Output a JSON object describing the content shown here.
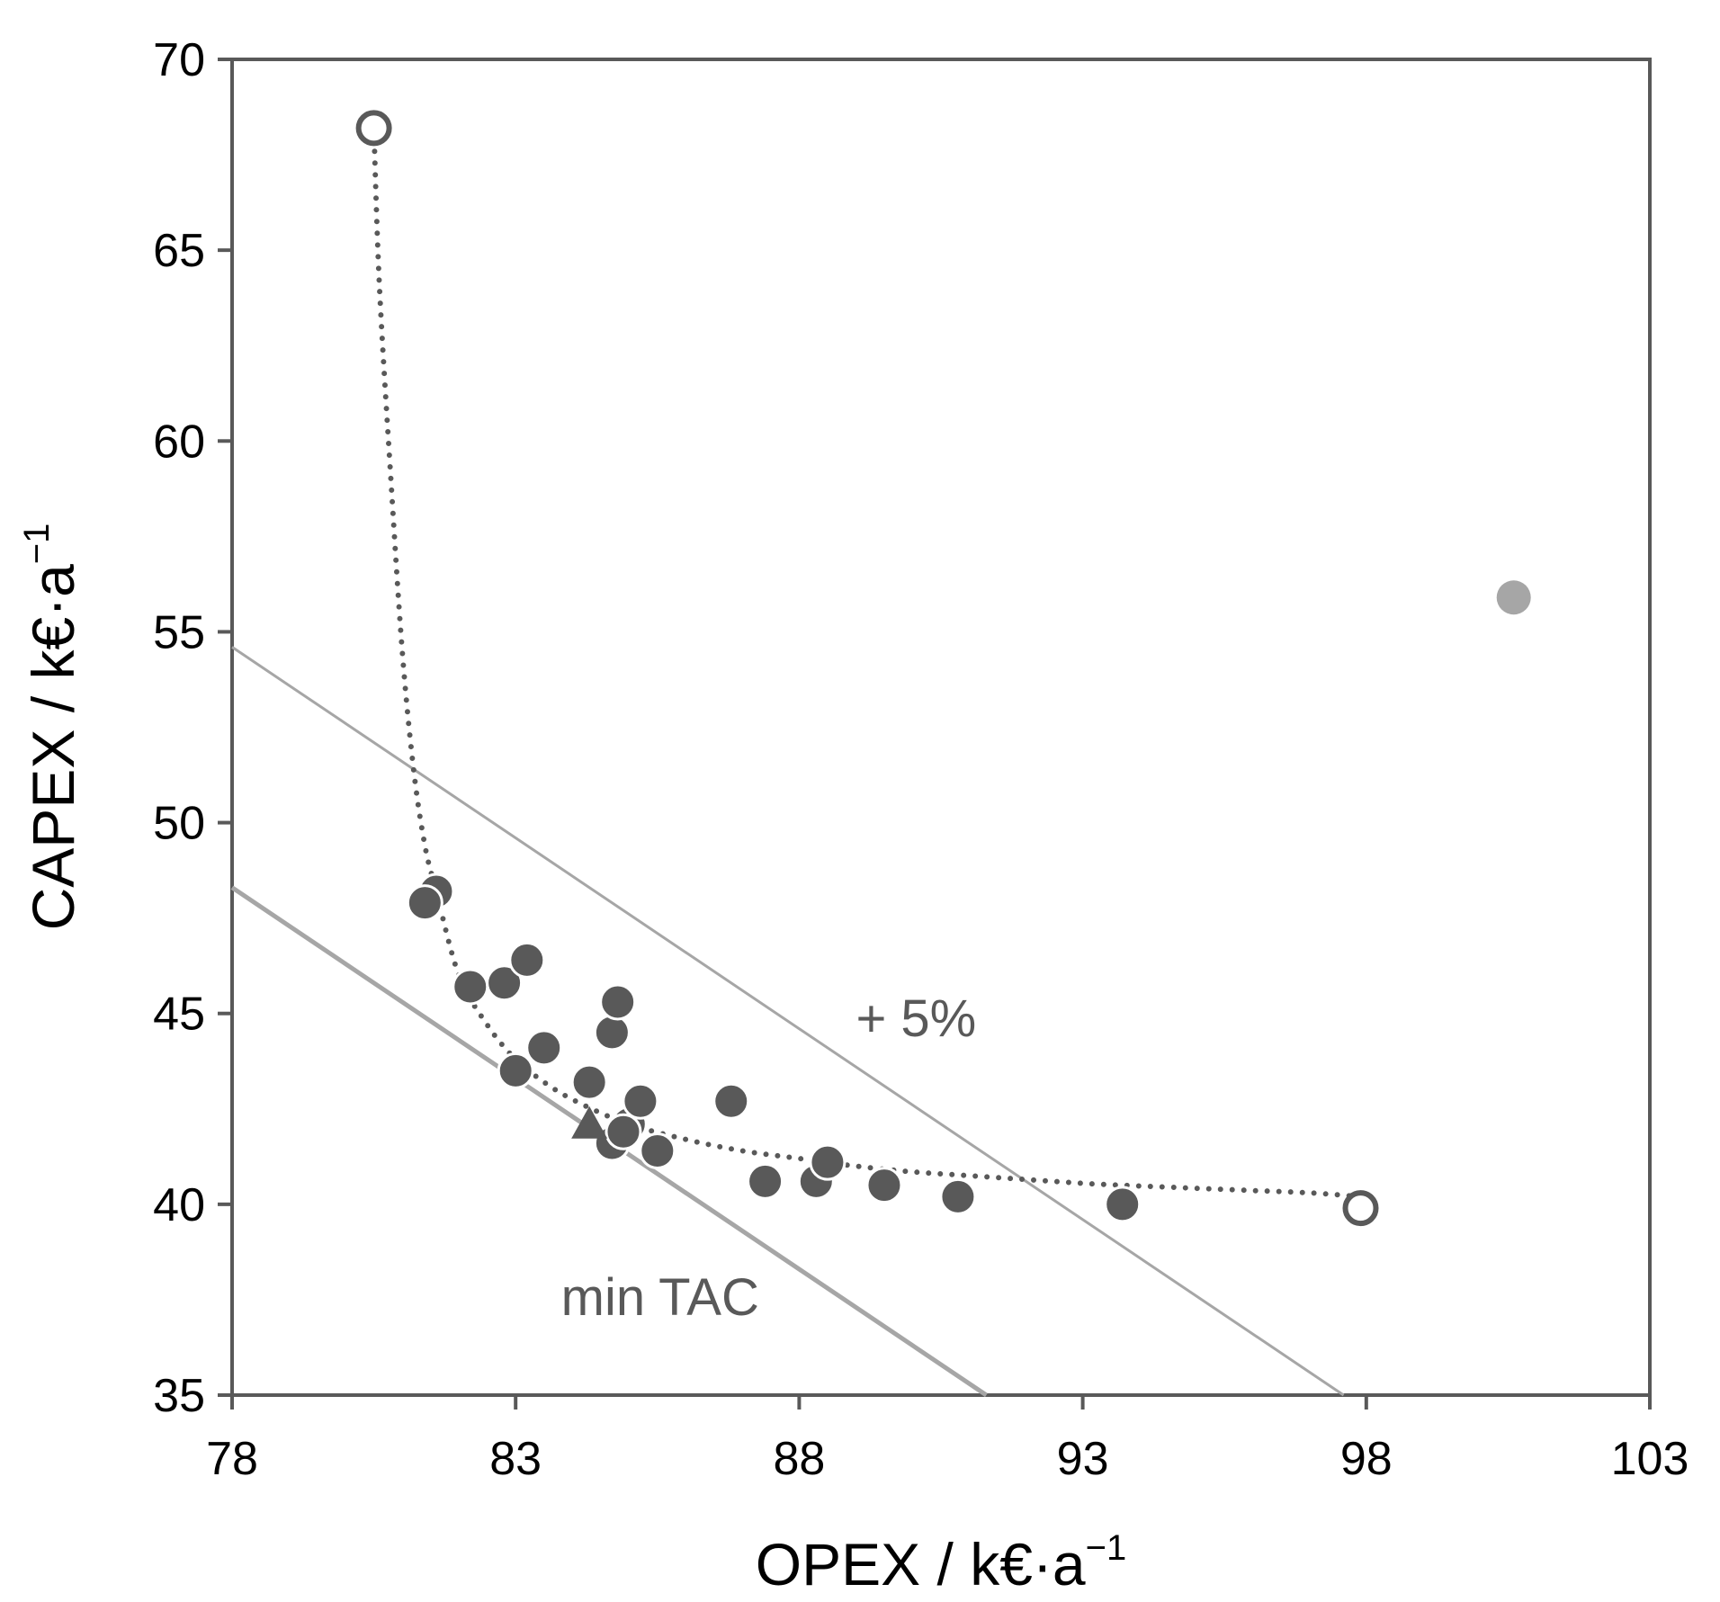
{
  "chart_data": {
    "type": "scatter",
    "title": "",
    "xlabel": "OPEX / k€·a",
    "xlabel_sup": "−1",
    "ylabel": "CAPEX / k€·a",
    "ylabel_sup": "−1",
    "xlim": [
      78,
      103
    ],
    "ylim": [
      35,
      70
    ],
    "xticks": [
      78,
      83,
      88,
      93,
      98,
      103
    ],
    "yticks": [
      35,
      40,
      45,
      50,
      55,
      60,
      65,
      70
    ],
    "xtick_labels": [
      "78",
      "83",
      "88",
      "93",
      "98",
      "103"
    ],
    "ytick_labels": [
      "35",
      "40",
      "45",
      "50",
      "55",
      "60",
      "65",
      "70"
    ],
    "grid": false,
    "colors": {
      "axis": "#595959",
      "dark_point": "#595959",
      "light_point": "#a6a6a6",
      "tac_line": "#a6a6a6",
      "front": "#595959",
      "annotation": "#595959"
    },
    "series": [
      {
        "name": "solutions",
        "marker": "filled-circle",
        "x": [
          81.6,
          82.2,
          82.8,
          83.2,
          83.5,
          84.3,
          84.7,
          84.7,
          84.8,
          85.0,
          85.2,
          85.5,
          86.8,
          87.4,
          88.3,
          88.5,
          89.5,
          90.8,
          93.7
        ],
        "y": [
          48.2,
          45.7,
          45.8,
          46.4,
          44.1,
          43.2,
          44.5,
          41.6,
          45.3,
          42.1,
          42.7,
          41.4,
          42.7,
          40.6,
          40.6,
          41.1,
          40.5,
          40.2,
          40.0
        ]
      },
      {
        "name": "pareto-members",
        "marker": "filled-circle-white-edge",
        "x": [
          81.4,
          83.0,
          84.9
        ],
        "y": [
          47.9,
          43.5,
          41.9
        ]
      },
      {
        "name": "extreme-solutions",
        "marker": "open-circle",
        "x": [
          80.5,
          97.9
        ],
        "y": [
          68.2,
          39.9
        ]
      },
      {
        "name": "min-tac-solution",
        "marker": "triangle",
        "x": [
          84.3
        ],
        "y": [
          42.1
        ]
      },
      {
        "name": "outlier",
        "marker": "light-circle",
        "x": [
          100.6
        ],
        "y": [
          55.9
        ]
      },
      {
        "name": "pareto-front",
        "style": "dotted",
        "x": [
          80.5,
          80.6,
          80.8,
          81.0,
          81.2,
          81.4,
          81.6,
          82.0,
          82.5,
          83.0,
          83.6,
          84.2,
          85.0,
          86.0,
          87.0,
          88.0,
          89.0,
          90.0,
          91.0,
          92.0,
          93.0,
          94.0,
          95.0,
          96.0,
          97.0,
          97.9
        ],
        "y": [
          68.2,
          64.0,
          59.0,
          54.5,
          51.4,
          49.4,
          48.2,
          46.0,
          44.7,
          43.8,
          43.1,
          42.6,
          42.1,
          41.7,
          41.4,
          41.2,
          41.0,
          40.85,
          40.75,
          40.65,
          40.55,
          40.48,
          40.42,
          40.36,
          40.3,
          40.2
        ]
      },
      {
        "name": "min-tac-line",
        "style": "solid",
        "x": [
          78.0,
          91.3
        ],
        "y": [
          48.3,
          35.0
        ]
      },
      {
        "name": "plus-5-percent-line",
        "style": "solid",
        "x": [
          78.0,
          97.6
        ],
        "y": [
          54.6,
          35.0
        ]
      }
    ],
    "annotations": [
      {
        "name": "plus-5-label",
        "text": "+ 5%",
        "x": 89.0,
        "y": 44.4
      },
      {
        "name": "min-tac-label",
        "text": "min TAC",
        "x": 83.8,
        "y": 37.1
      }
    ]
  }
}
